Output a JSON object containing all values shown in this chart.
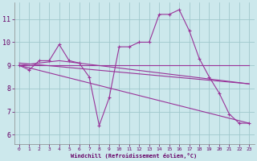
{
  "bg_color": "#cce8ec",
  "grid_color": "#a0c8cc",
  "line_color": "#993399",
  "x_ticks": [
    0,
    1,
    2,
    3,
    4,
    5,
    6,
    7,
    8,
    9,
    10,
    11,
    12,
    13,
    14,
    15,
    16,
    17,
    18,
    19,
    20,
    21,
    22,
    23
  ],
  "y_ticks": [
    6,
    7,
    8,
    9,
    10,
    11
  ],
  "xlabel": "Windchill (Refroidissement éolien,°C)",
  "xlim": [
    -0.5,
    23.5
  ],
  "ylim": [
    5.6,
    11.7
  ],
  "line1_x": [
    0,
    1,
    2,
    3,
    4,
    5,
    6,
    7,
    8,
    9,
    10,
    11,
    12,
    13,
    14,
    15,
    16,
    17,
    18,
    19,
    20,
    21,
    22,
    23
  ],
  "line1_y": [
    9.0,
    8.8,
    9.2,
    9.2,
    9.9,
    9.2,
    9.1,
    8.5,
    6.4,
    7.6,
    9.8,
    9.8,
    10.0,
    10.0,
    11.2,
    11.2,
    11.4,
    10.5,
    9.3,
    8.5,
    7.8,
    6.9,
    6.5,
    6.5
  ],
  "line2_x": [
    0,
    23
  ],
  "line2_y": [
    9.0,
    9.0
  ],
  "line3_x": [
    0,
    23
  ],
  "line3_y": [
    9.0,
    6.5
  ],
  "line4_x": [
    0,
    23
  ],
  "line4_y": [
    9.1,
    8.2
  ],
  "line5_x": [
    0,
    4,
    23
  ],
  "line5_y": [
    9.0,
    9.2,
    8.2
  ]
}
